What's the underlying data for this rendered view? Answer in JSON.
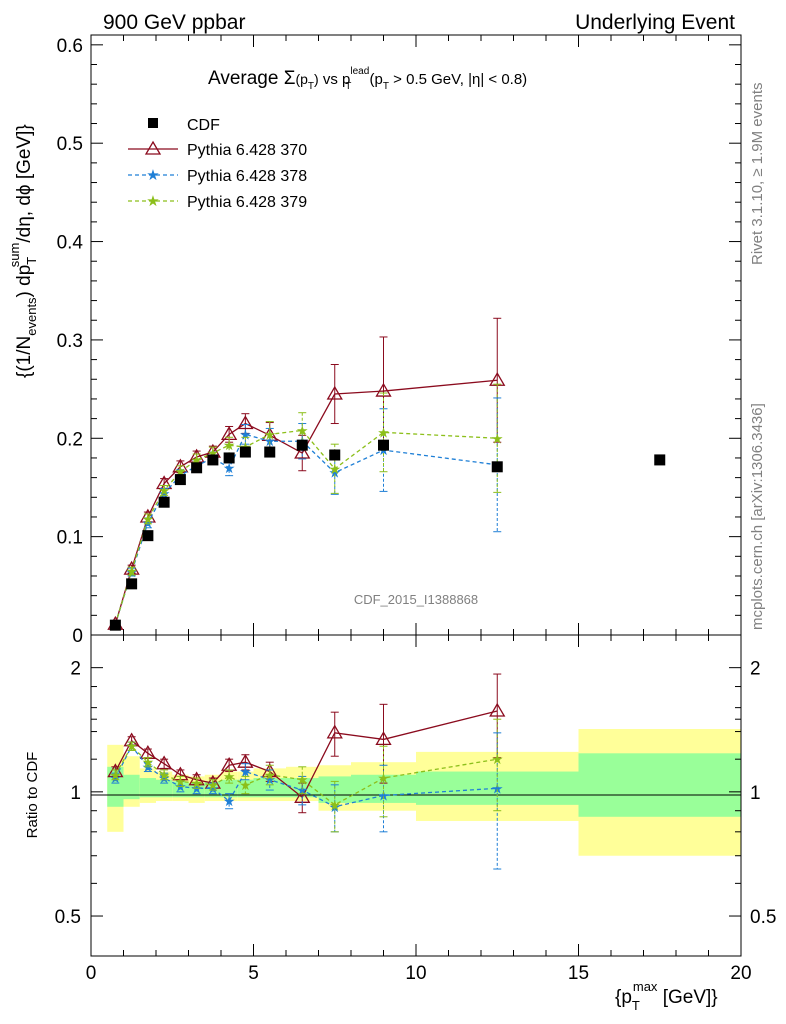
{
  "header": {
    "left": "900 GeV ppbar",
    "right": "Underlying Event"
  },
  "side": {
    "rivet": "Rivet 3.1.10, ≥ 1.9M events",
    "mcplots": "mcplots.cern.ch [arXiv:1306.3436]"
  },
  "chart_data": [
    {
      "type": "scatter",
      "panel": "main",
      "title": {
        "pre": "Average ",
        "sigma": "Σ",
        "sig_arg": "(p",
        "sig_sub": "T",
        "sig_close": ")",
        "vs": " vs p",
        "lead_sup": "lead",
        "lead_sub": "T",
        "cut": " (p",
        "cut_sub": "T",
        "cut_rest": " > 0.5 GeV, |η| < 0.8)"
      },
      "ylabel": {
        "a": "{(1/N",
        "a_sub": "events",
        "b": ") dp",
        "b_sub": "T",
        "b_sup": "sum",
        "c": "/dη, dϕ [GeV]}"
      },
      "watermark": "CDF_2015_I1388868",
      "xlim": [
        0,
        20
      ],
      "ylim": [
        0,
        0.61
      ],
      "y_ticks": [
        0,
        0.1,
        0.2,
        0.3,
        0.4,
        0.5,
        0.6
      ],
      "y_tick_labels": [
        "0",
        "0.1",
        "0.2",
        "0.3",
        "0.4",
        "0.5",
        "0.6"
      ],
      "x_bins": [
        [
          0.5,
          1
        ],
        [
          1,
          1.5
        ],
        [
          1.5,
          2
        ],
        [
          2,
          2.5
        ],
        [
          2.5,
          3
        ],
        [
          3,
          3.5
        ],
        [
          3.5,
          4
        ],
        [
          4,
          4.5
        ],
        [
          4.5,
          5
        ],
        [
          5,
          6
        ],
        [
          6,
          7
        ],
        [
          7,
          8
        ],
        [
          8,
          10
        ],
        [
          10,
          15
        ],
        [
          15,
          20
        ]
      ],
      "x": [
        0.75,
        1.25,
        1.75,
        2.25,
        2.75,
        3.25,
        3.75,
        4.25,
        4.75,
        5.5,
        6.5,
        7.5,
        9,
        12.5,
        17.5
      ],
      "series": [
        {
          "name": "CDF",
          "color": "#000000",
          "marker": "square",
          "values": [
            0.01,
            0.052,
            0.101,
            0.135,
            0.158,
            0.17,
            0.178,
            0.18,
            0.186,
            0.186,
            0.193,
            0.183,
            0.193,
            0.171,
            0.178
          ]
        },
        {
          "name": "Pythia 6.428 370",
          "color": "#8b0b1e",
          "marker": "triangle",
          "dash": "solid",
          "values": [
            0.011,
            0.067,
            0.12,
            0.154,
            0.171,
            0.181,
            0.186,
            0.204,
            0.215,
            0.203,
            0.185,
            0.245,
            0.248,
            0.259
          ],
          "errors": [
            0.002,
            0.004,
            0.005,
            0.005,
            0.006,
            0.006,
            0.006,
            0.008,
            0.01,
            0.013,
            0.018,
            0.03,
            0.055,
            0.063
          ]
        },
        {
          "name": "Pythia 6.428 378",
          "color": "#1e7fd6",
          "marker": "star",
          "dash": "dashed",
          "values": [
            0.011,
            0.064,
            0.114,
            0.144,
            0.162,
            0.172,
            0.18,
            0.17,
            0.204,
            0.197,
            0.197,
            0.165,
            0.188,
            0.173
          ],
          "errors": [
            0.002,
            0.004,
            0.005,
            0.005,
            0.006,
            0.006,
            0.006,
            0.008,
            0.01,
            0.013,
            0.018,
            0.022,
            0.042,
            0.068
          ]
        },
        {
          "name": "Pythia 6.428 379",
          "color": "#8cbf1a",
          "marker": "star",
          "dash": "dashed",
          "values": [
            0.011,
            0.065,
            0.118,
            0.147,
            0.166,
            0.178,
            0.185,
            0.193,
            0.191,
            0.204,
            0.208,
            0.169,
            0.206,
            0.2
          ],
          "errors": [
            0.002,
            0.004,
            0.005,
            0.005,
            0.006,
            0.006,
            0.006,
            0.008,
            0.01,
            0.013,
            0.018,
            0.025,
            0.04,
            0.055
          ]
        }
      ]
    },
    {
      "type": "scatter",
      "panel": "ratio",
      "ylabel": "Ratio to CDF",
      "xlabel": {
        "pre": "{p",
        "sub": "T",
        "sup": "max",
        "post": " [GeV]}"
      },
      "xlim": [
        0,
        20
      ],
      "ylim": [
        0.4,
        2.4
      ],
      "log_y": true,
      "x_ticks": [
        0,
        5,
        10,
        15,
        20
      ],
      "x_tick_labels": [
        "0",
        "5",
        "10",
        "15",
        "20"
      ],
      "y_ticks": [
        0.5,
        1,
        2
      ],
      "y_tick_labels": [
        "0.5",
        "1",
        "2"
      ],
      "band_yellow": [
        [
          0.8,
          1.3
        ],
        [
          0.92,
          1.22
        ],
        [
          0.94,
          1.14
        ],
        [
          0.95,
          1.12
        ],
        [
          0.95,
          1.1
        ],
        [
          0.94,
          1.09
        ],
        [
          0.95,
          1.1
        ],
        [
          0.95,
          1.12
        ],
        [
          0.95,
          1.12
        ],
        [
          0.95,
          1.14
        ],
        [
          0.95,
          1.15
        ],
        [
          0.9,
          1.16
        ],
        [
          0.9,
          1.18
        ],
        [
          0.85,
          1.25
        ],
        [
          0.7,
          1.42
        ]
      ],
      "band_green": [
        [
          0.92,
          1.15
        ],
        [
          0.96,
          1.1
        ],
        [
          0.97,
          1.08
        ],
        [
          0.97,
          1.07
        ],
        [
          0.97,
          1.06
        ],
        [
          0.97,
          1.05
        ],
        [
          0.97,
          1.06
        ],
        [
          0.97,
          1.07
        ],
        [
          0.97,
          1.07
        ],
        [
          0.97,
          1.08
        ],
        [
          0.97,
          1.08
        ],
        [
          0.94,
          1.09
        ],
        [
          0.94,
          1.1
        ],
        [
          0.93,
          1.12
        ],
        [
          0.87,
          1.24
        ]
      ],
      "series": [
        {
          "name": "Pythia 6.428 370",
          "color": "#8b0b1e",
          "marker": "triangle",
          "dash": "solid",
          "values": [
            1.12,
            1.33,
            1.24,
            1.17,
            1.1,
            1.07,
            1.05,
            1.16,
            1.18,
            1.12,
            0.97,
            1.39,
            1.34,
            1.57
          ],
          "errors": [
            0.03,
            0.03,
            0.03,
            0.03,
            0.03,
            0.03,
            0.03,
            0.04,
            0.05,
            0.06,
            0.08,
            0.17,
            0.29,
            0.36
          ]
        },
        {
          "name": "Pythia 6.428 378",
          "color": "#1e7fd6",
          "marker": "star",
          "dash": "dashed",
          "values": [
            1.08,
            1.29,
            1.15,
            1.08,
            1.03,
            1.02,
            1.02,
            0.95,
            1.12,
            1.07,
            1.01,
            0.92,
            0.98,
            1.02
          ],
          "errors": [
            0.03,
            0.03,
            0.03,
            0.03,
            0.03,
            0.03,
            0.03,
            0.04,
            0.05,
            0.06,
            0.08,
            0.12,
            0.18,
            0.37
          ]
        },
        {
          "name": "Pythia 6.428 379",
          "color": "#8cbf1a",
          "marker": "star",
          "dash": "dashed",
          "values": [
            1.1,
            1.29,
            1.18,
            1.1,
            1.06,
            1.05,
            1.04,
            1.09,
            1.04,
            1.1,
            1.07,
            0.93,
            1.08,
            1.2
          ],
          "errors": [
            0.03,
            0.03,
            0.03,
            0.03,
            0.03,
            0.03,
            0.03,
            0.04,
            0.05,
            0.06,
            0.08,
            0.13,
            0.21,
            0.3
          ]
        }
      ]
    }
  ]
}
